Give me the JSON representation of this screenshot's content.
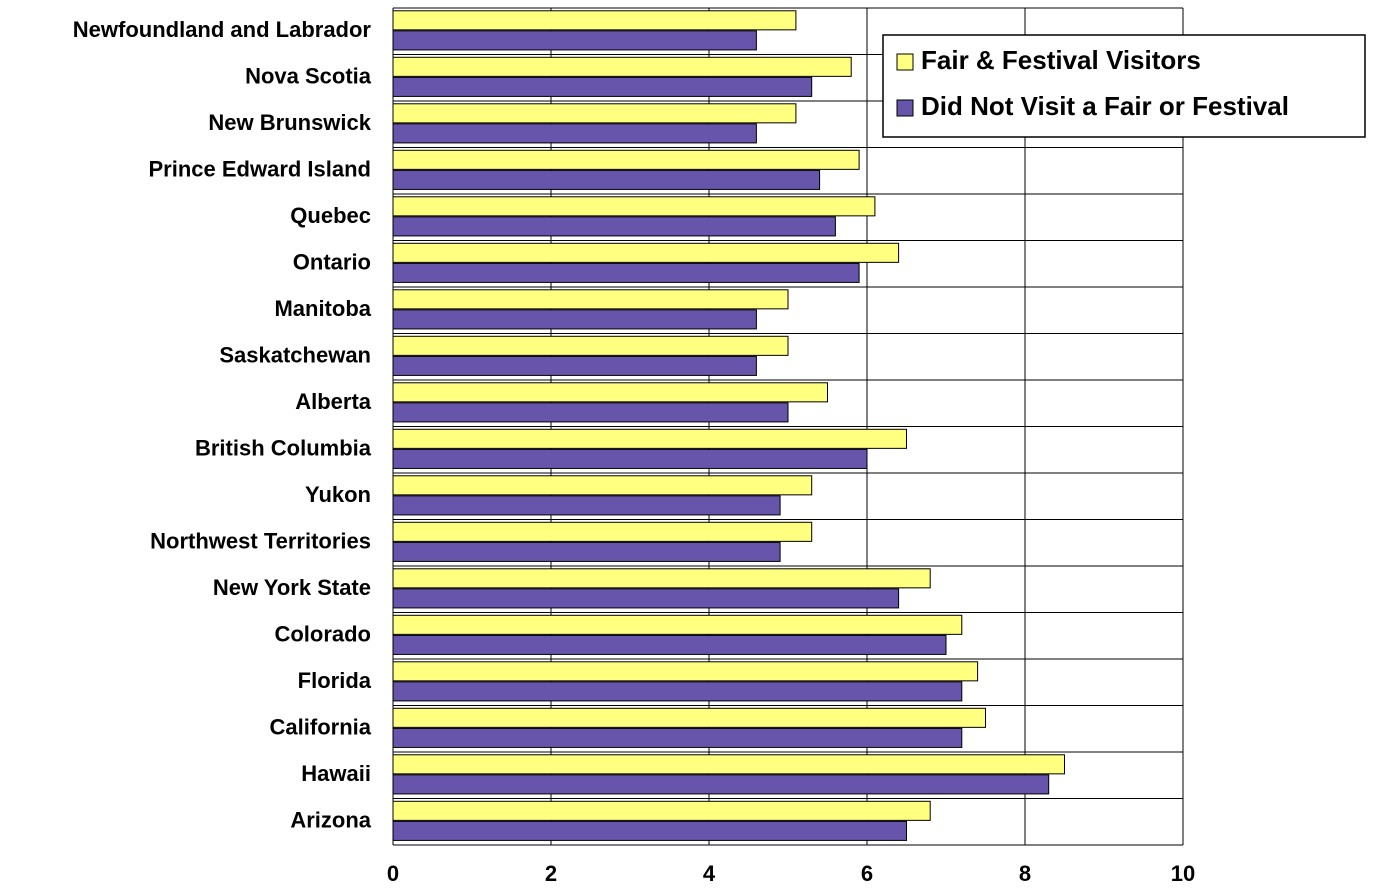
{
  "chart_data": {
    "type": "bar",
    "orientation": "horizontal",
    "categories": [
      "Newfoundland and Labrador",
      "Nova Scotia",
      "New Brunswick",
      "Prince Edward Island",
      "Quebec",
      "Ontario",
      "Manitoba",
      "Saskatchewan",
      "Alberta",
      "British Columbia",
      "Yukon",
      "Northwest Territories",
      "New York State",
      "Colorado",
      "Florida",
      "California",
      "Hawaii",
      "Arizona"
    ],
    "series": [
      {
        "name": "Fair & Festival Visitors",
        "color": "#ffff80",
        "values": [
          5.1,
          5.8,
          5.1,
          5.9,
          6.1,
          6.4,
          5.0,
          5.0,
          5.5,
          6.5,
          5.3,
          5.3,
          6.8,
          7.2,
          7.4,
          7.5,
          8.5,
          6.8
        ]
      },
      {
        "name": "Did Not Visit a Fair or Festival",
        "color": "#6655aa",
        "values": [
          4.6,
          5.3,
          4.6,
          5.4,
          5.6,
          5.9,
          4.6,
          4.6,
          5.0,
          6.0,
          4.9,
          4.9,
          6.4,
          7.0,
          7.2,
          7.2,
          8.3,
          6.5
        ]
      }
    ],
    "xlim": [
      0,
      10
    ],
    "xticks": [
      0,
      2,
      4,
      6,
      8,
      10
    ],
    "grid": true,
    "legend": "top-right"
  }
}
